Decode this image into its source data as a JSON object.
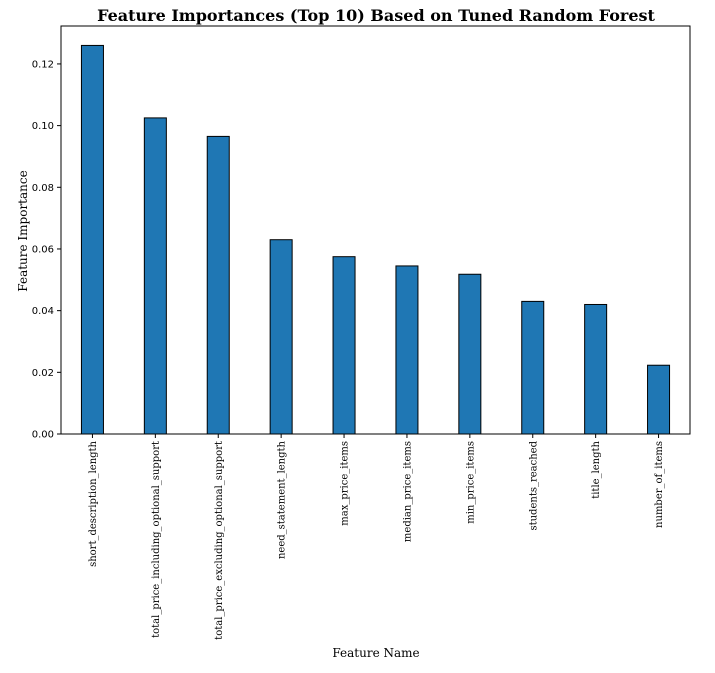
{
  "chart_data": {
    "type": "bar",
    "title": "Feature Importances (Top 10) Based on Tuned Random Forest",
    "xlabel": "Feature Name",
    "ylabel": "Feature Importance",
    "categories": [
      "short_description_length",
      "total_price_including_optional_support",
      "total_price_excluding_optional_support",
      "need_statement_length",
      "max_price_items",
      "median_price_items",
      "min_price_items",
      "students_reached",
      "title_length",
      "number_of_items"
    ],
    "values": [
      0.126,
      0.1025,
      0.0965,
      0.063,
      0.0575,
      0.0545,
      0.0518,
      0.043,
      0.042,
      0.0223
    ],
    "ylim": [
      0,
      0.1323
    ],
    "yticks": [
      0.0,
      0.02,
      0.04,
      0.06,
      0.08,
      0.1,
      0.12
    ],
    "ytick_labels": [
      "0.00",
      "0.02",
      "0.04",
      "0.06",
      "0.08",
      "0.10",
      "0.12"
    ],
    "bar_color": "#1f77b4",
    "edge_color": "#000000",
    "grid": false,
    "legend": "none"
  }
}
